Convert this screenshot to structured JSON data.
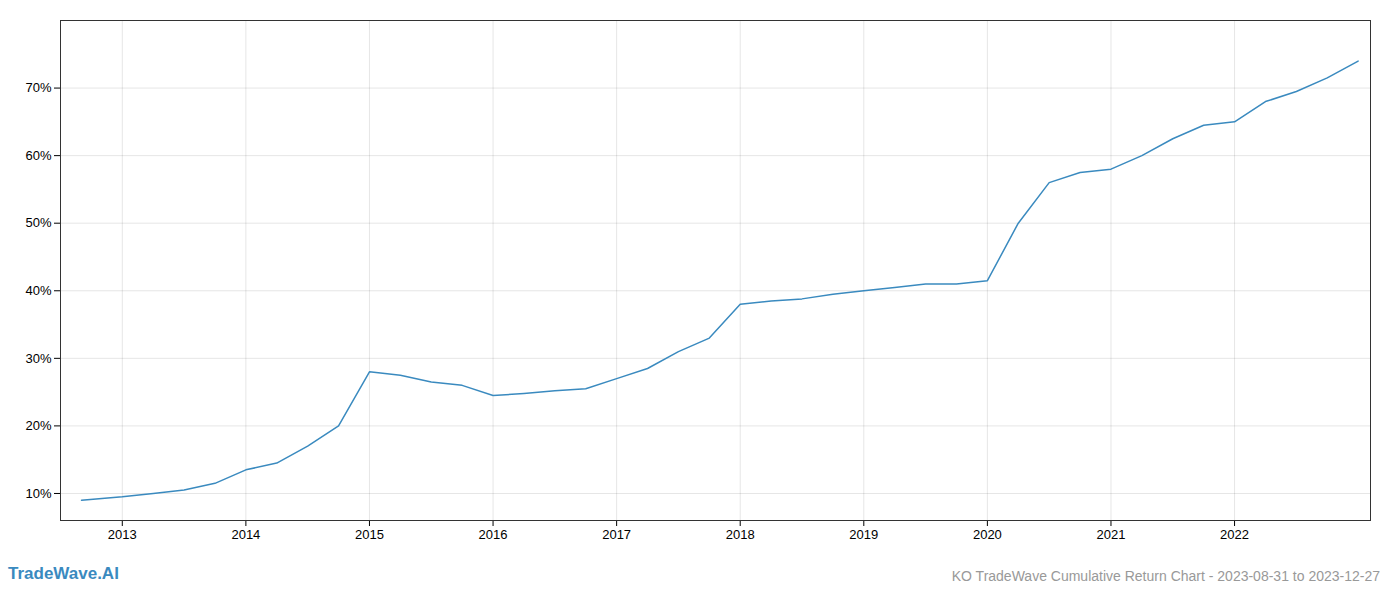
{
  "chart_data": {
    "type": "line",
    "title": "KO TradeWave Cumulative Return Chart - 2023-08-31 to 2023-12-27",
    "annotations": [
      {
        "text": "TradeWave.AI",
        "color": "#3a8abf"
      }
    ],
    "color": "#3a8abf",
    "x": [
      2012.67,
      2013.0,
      2013.25,
      2013.5,
      2013.75,
      2014.0,
      2014.25,
      2014.5,
      2014.75,
      2015.0,
      2015.25,
      2015.5,
      2015.75,
      2016.0,
      2016.25,
      2016.5,
      2016.75,
      2017.0,
      2017.25,
      2017.5,
      2017.75,
      2018.0,
      2018.25,
      2018.5,
      2018.75,
      2019.0,
      2019.25,
      2019.5,
      2019.75,
      2020.0,
      2020.25,
      2020.5,
      2020.75,
      2021.0,
      2021.25,
      2021.5,
      2021.75,
      2022.0,
      2022.25,
      2022.5,
      2022.75,
      2023.0
    ],
    "values": [
      0.09,
      0.095,
      0.1,
      0.105,
      0.115,
      0.135,
      0.145,
      0.17,
      0.2,
      0.28,
      0.275,
      0.265,
      0.26,
      0.245,
      0.248,
      0.252,
      0.255,
      0.27,
      0.285,
      0.31,
      0.33,
      0.38,
      0.385,
      0.388,
      0.395,
      0.4,
      0.405,
      0.41,
      0.41,
      0.415,
      0.5,
      0.56,
      0.575,
      0.58,
      0.6,
      0.625,
      0.645,
      0.65,
      0.68,
      0.695,
      0.715,
      0.74
    ],
    "xlim": [
      2012.5,
      2023.1
    ],
    "xticks": [
      2013,
      2014,
      2015,
      2016,
      2017,
      2018,
      2019,
      2020,
      2021,
      2022
    ],
    "ylim": [
      0.06,
      0.8
    ],
    "yticks": [
      {
        "value": 0.1,
        "label": "10%"
      },
      {
        "value": 0.2,
        "label": "20%"
      },
      {
        "value": 0.3,
        "label": "30%"
      },
      {
        "value": 0.4,
        "label": "40%"
      },
      {
        "value": 0.5,
        "label": "50%"
      },
      {
        "value": 0.6,
        "label": "60%"
      },
      {
        "value": 0.7,
        "label": "70%"
      }
    ],
    "grid": true
  }
}
